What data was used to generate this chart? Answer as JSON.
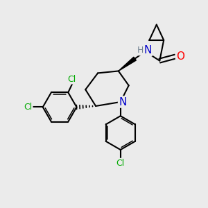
{
  "background_color": "#ebebeb",
  "bond_color": "#000000",
  "atom_colors": {
    "N": "#0000cc",
    "O": "#ff0000",
    "Cl": "#00aa00",
    "H": "#708090",
    "C": "#000000"
  }
}
